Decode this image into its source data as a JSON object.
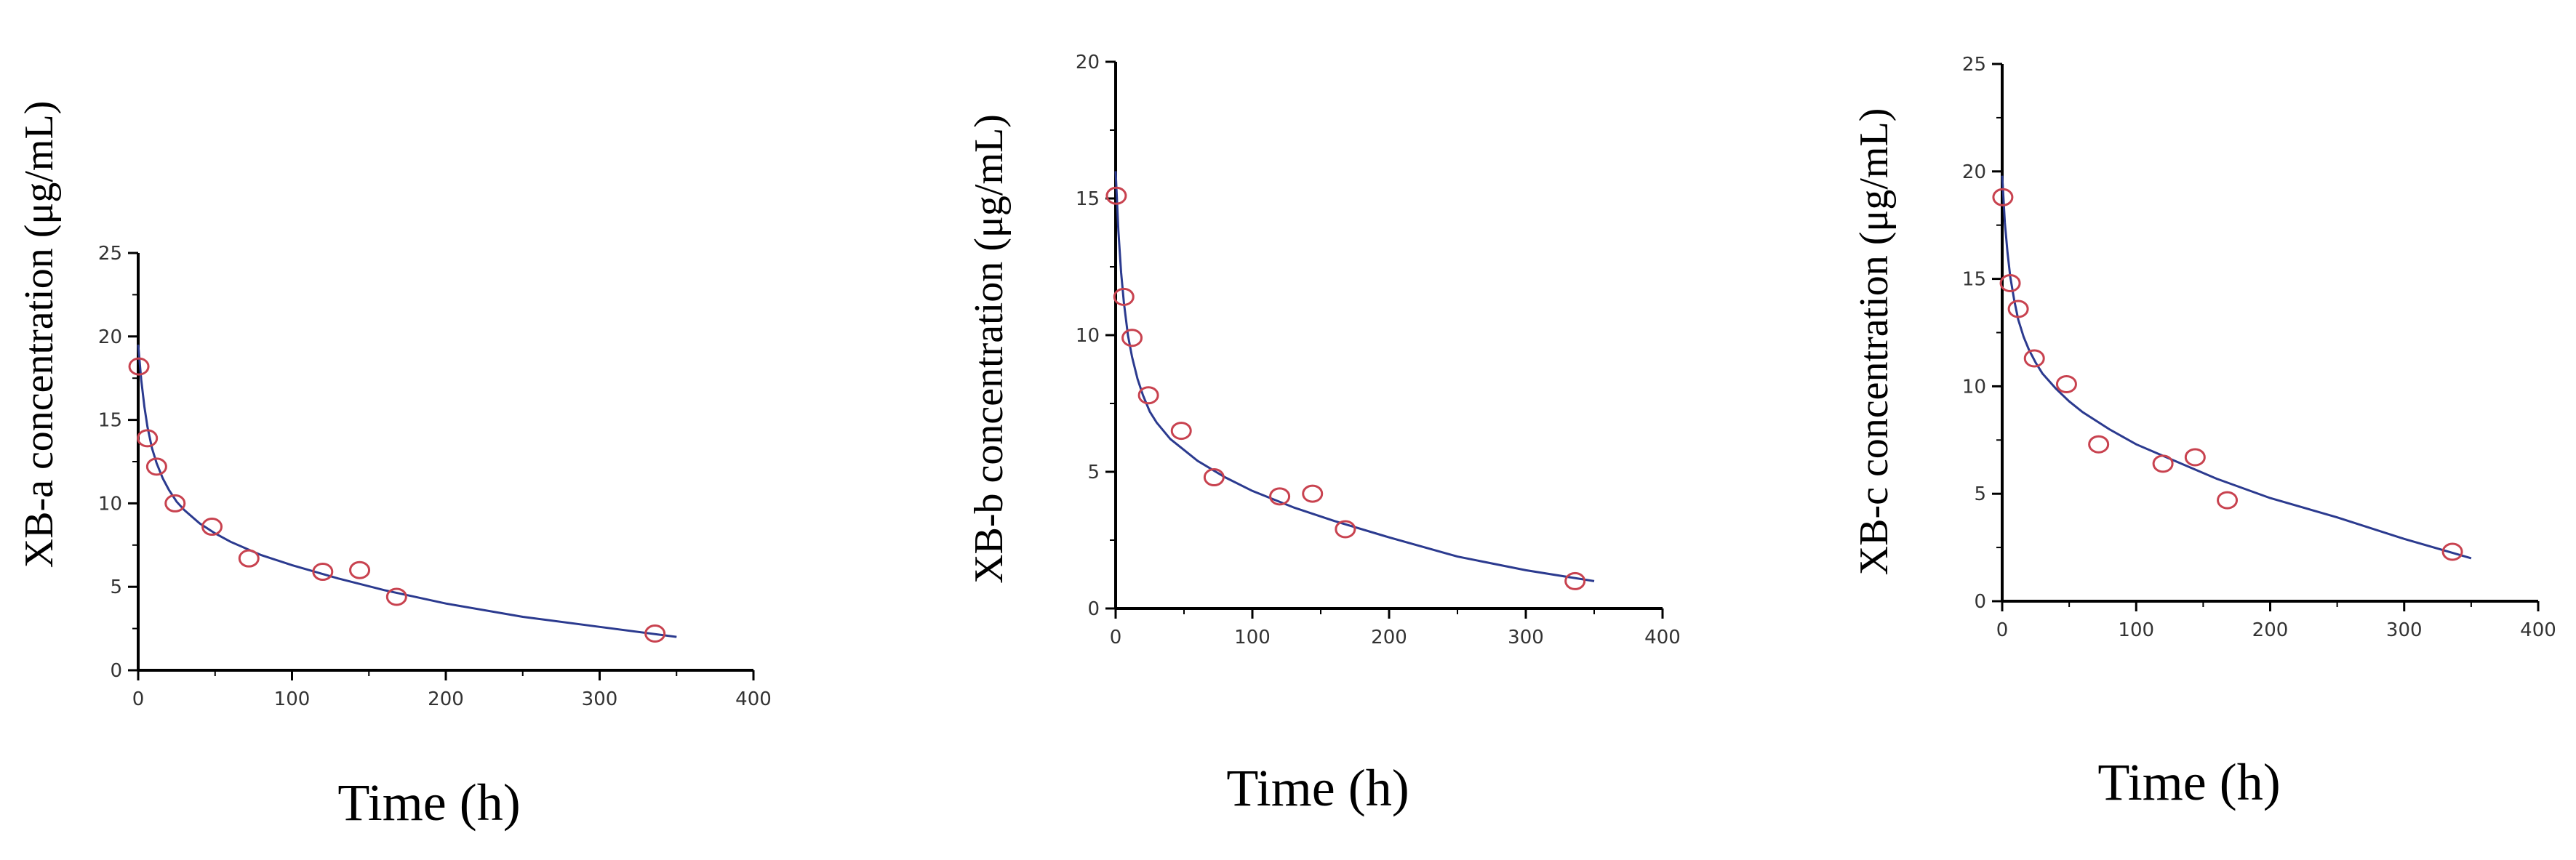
{
  "colors": {
    "axis": "#000000",
    "tick_text": "#333333",
    "fit_line": "#2b3a8f",
    "marker": "#c8424f"
  },
  "chart_data": [
    {
      "type": "scatter",
      "xlabel": "Time (h)",
      "ylabel": "XB-a concentration (μg/mL)",
      "xlim": [
        0,
        400
      ],
      "ylim": [
        0,
        25
      ],
      "xticks": [
        0,
        100,
        200,
        300,
        400
      ],
      "yticks": [
        0,
        5,
        10,
        15,
        20,
        25
      ],
      "grid": false,
      "series": [
        {
          "kind": "points",
          "marker": "open-circle",
          "x": [
            0.5,
            6,
            12,
            24,
            48,
            72,
            120,
            144,
            168,
            336
          ],
          "y": [
            18.2,
            13.9,
            12.2,
            10.0,
            8.6,
            6.7,
            5.9,
            6.0,
            4.4,
            2.2
          ]
        },
        {
          "kind": "fit",
          "x": [
            0,
            2,
            4,
            6,
            9,
            12,
            16,
            20,
            25,
            30,
            40,
            50,
            60,
            80,
            100,
            130,
            160,
            200,
            250,
            300,
            350
          ],
          "y": [
            19.5,
            17.4,
            15.8,
            14.6,
            13.3,
            12.4,
            11.5,
            10.8,
            10.1,
            9.6,
            8.8,
            8.2,
            7.7,
            6.9,
            6.3,
            5.5,
            4.8,
            4.0,
            3.2,
            2.6,
            2.0
          ]
        }
      ]
    },
    {
      "type": "scatter",
      "xlabel": "Time (h)",
      "ylabel": "XB-b concentration (μg/mL)",
      "xlim": [
        0,
        400
      ],
      "ylim": [
        0,
        20
      ],
      "xticks": [
        0,
        100,
        200,
        300,
        400
      ],
      "yticks": [
        0,
        5,
        10,
        15,
        20
      ],
      "grid": false,
      "series": [
        {
          "kind": "points",
          "marker": "open-circle",
          "x": [
            0.5,
            6,
            12,
            24,
            48,
            72,
            120,
            144,
            168,
            336
          ],
          "y": [
            15.1,
            11.4,
            9.9,
            7.8,
            6.5,
            4.8,
            4.1,
            4.2,
            2.9,
            1.0
          ]
        },
        {
          "kind": "fit",
          "x": [
            0,
            2,
            4,
            6,
            9,
            12,
            16,
            20,
            25,
            30,
            40,
            50,
            60,
            80,
            100,
            130,
            160,
            200,
            250,
            300,
            350
          ],
          "y": [
            16.0,
            13.8,
            12.3,
            11.2,
            10.0,
            9.2,
            8.4,
            7.8,
            7.2,
            6.8,
            6.2,
            5.8,
            5.4,
            4.8,
            4.3,
            3.7,
            3.2,
            2.6,
            1.9,
            1.4,
            1.0
          ]
        }
      ]
    },
    {
      "type": "scatter",
      "xlabel": "Time (h)",
      "ylabel": "XB-c concentration (μg/mL)",
      "xlim": [
        0,
        400
      ],
      "ylim": [
        0,
        25
      ],
      "xticks": [
        0,
        100,
        200,
        300,
        400
      ],
      "yticks": [
        0,
        5,
        10,
        15,
        20,
        25
      ],
      "grid": false,
      "series": [
        {
          "kind": "points",
          "marker": "open-circle",
          "x": [
            0.5,
            6,
            12,
            24,
            48,
            72,
            120,
            144,
            168,
            336
          ],
          "y": [
            18.8,
            14.8,
            13.6,
            11.3,
            10.1,
            7.3,
            6.4,
            6.7,
            4.7,
            2.3
          ]
        },
        {
          "kind": "fit",
          "x": [
            0,
            2,
            4,
            6,
            9,
            12,
            16,
            20,
            25,
            30,
            40,
            50,
            60,
            80,
            100,
            130,
            160,
            200,
            250,
            300,
            350
          ],
          "y": [
            19.8,
            17.6,
            16.2,
            15.1,
            14.0,
            13.1,
            12.3,
            11.7,
            11.1,
            10.6,
            9.9,
            9.3,
            8.8,
            8.0,
            7.3,
            6.5,
            5.7,
            4.8,
            3.9,
            2.9,
            2.0
          ]
        }
      ]
    }
  ]
}
